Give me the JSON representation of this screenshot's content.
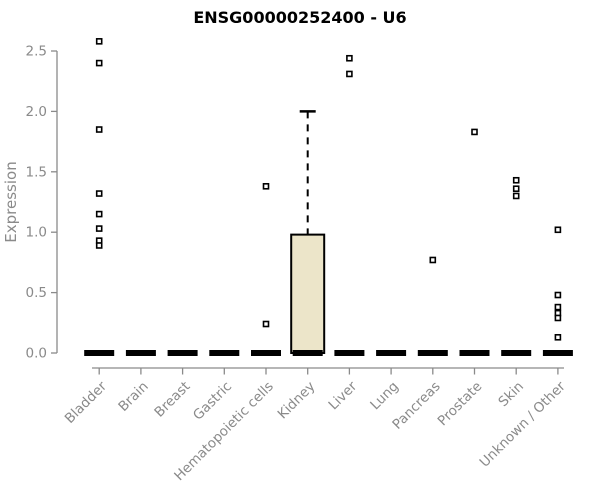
{
  "chart_data": {
    "type": "boxplot",
    "title": "ENSG00000252400 - U6",
    "xlabel": "",
    "ylabel": "Expression",
    "ylim": [
      0,
      2.5
    ],
    "y_ticks": [
      0.0,
      0.5,
      1.0,
      1.5,
      2.0,
      2.5
    ],
    "y_tick_labels": [
      "0.0",
      "0.5",
      "1.0",
      "1.5",
      "2.0",
      "2.5"
    ],
    "grid": false,
    "legend": "none",
    "categories": [
      "Bladder",
      "Brain",
      "Breast",
      "Gastric",
      "Hematopoietic cells",
      "Kidney",
      "Liver",
      "Lung",
      "Pancreas",
      "Prostate",
      "Skin",
      "Unknown / Other"
    ],
    "series": [
      {
        "category": "Bladder",
        "median": 0,
        "q1": 0,
        "q3": 0,
        "whisker_low": 0,
        "whisker_high": 0,
        "outliers": [
          2.58,
          2.4,
          1.85,
          1.32,
          1.15,
          1.03,
          0.93,
          0.89
        ]
      },
      {
        "category": "Brain",
        "median": 0,
        "q1": 0,
        "q3": 0,
        "whisker_low": 0,
        "whisker_high": 0,
        "outliers": []
      },
      {
        "category": "Breast",
        "median": 0,
        "q1": 0,
        "q3": 0,
        "whisker_low": 0,
        "whisker_high": 0,
        "outliers": []
      },
      {
        "category": "Gastric",
        "median": 0,
        "q1": 0,
        "q3": 0,
        "whisker_low": 0,
        "whisker_high": 0,
        "outliers": []
      },
      {
        "category": "Hematopoietic cells",
        "median": 0,
        "q1": 0,
        "q3": 0,
        "whisker_low": 0,
        "whisker_high": 0,
        "outliers": [
          1.38,
          0.24
        ]
      },
      {
        "category": "Kidney",
        "median": 0,
        "q1": 0,
        "q3": 0.98,
        "whisker_low": 0,
        "whisker_high": 2.0,
        "outliers": []
      },
      {
        "category": "Liver",
        "median": 0,
        "q1": 0,
        "q3": 0,
        "whisker_low": 0,
        "whisker_high": 0,
        "outliers": [
          2.44,
          2.31
        ]
      },
      {
        "category": "Lung",
        "median": 0,
        "q1": 0,
        "q3": 0,
        "whisker_low": 0,
        "whisker_high": 0,
        "outliers": []
      },
      {
        "category": "Pancreas",
        "median": 0,
        "q1": 0,
        "q3": 0,
        "whisker_low": 0,
        "whisker_high": 0,
        "outliers": [
          0.77
        ]
      },
      {
        "category": "Prostate",
        "median": 0,
        "q1": 0,
        "q3": 0,
        "whisker_low": 0,
        "whisker_high": 0,
        "outliers": [
          1.83
        ]
      },
      {
        "category": "Skin",
        "median": 0,
        "q1": 0,
        "q3": 0,
        "whisker_low": 0,
        "whisker_high": 0,
        "outliers": [
          1.43,
          1.36,
          1.3
        ]
      },
      {
        "category": "Unknown / Other",
        "median": 0,
        "q1": 0,
        "q3": 0,
        "whisker_low": 0,
        "whisker_high": 0,
        "outliers": [
          1.02,
          0.48,
          0.38,
          0.33,
          0.29,
          0.13
        ]
      }
    ],
    "colors": {
      "box_fill": "#ece5c9",
      "box_border": "#000000",
      "median": "#000000",
      "whisker": "#000000",
      "outlier_fill": "#ffffff",
      "outlier_border": "#000000",
      "axis": "#8a8a8a",
      "tick_label": "#8a8a8a",
      "title": "#000000"
    }
  }
}
